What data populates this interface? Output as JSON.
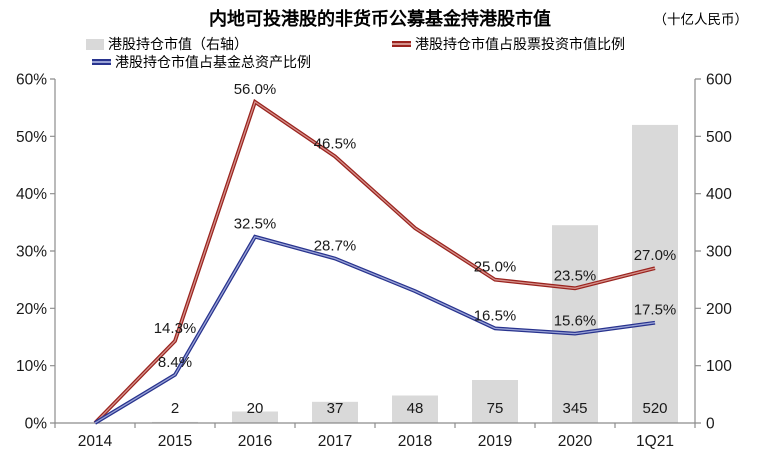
{
  "header": {
    "title": "内地可投港股的非货币公募基金持港股市值",
    "unit": "（十亿人民币）"
  },
  "legend": [
    {
      "label": "港股持仓市值（右轴）",
      "swatch": "gray-bar-swatch",
      "color": "#D9D9D9"
    },
    {
      "label": "港股持仓市值占股票投资市值比例",
      "swatch": "red-line-swatch",
      "color": "#9A231E"
    },
    {
      "label": "港股持仓市值占基金总资产比例",
      "swatch": "blue-line-swatch",
      "color": "#28338E"
    }
  ],
  "chart_data": {
    "type": "combo-bar-line",
    "title": "内地可投港股的非货币公募基金持港股市值",
    "right_axis_unit": "（十亿人民币）",
    "categories": [
      "2014",
      "2015",
      "2016",
      "2017",
      "2018",
      "2019",
      "2020",
      "1Q21"
    ],
    "series": [
      {
        "name": "港股持仓市值（右轴）",
        "type": "bar",
        "axis": "right",
        "values": [
          0,
          2,
          20,
          37,
          48,
          75,
          345,
          520
        ],
        "labels": [
          "",
          "2",
          "20",
          "37",
          "48",
          "75",
          "345",
          "520"
        ],
        "color": "#D9D9D9"
      },
      {
        "name": "港股持仓市值占股票投资市值比例",
        "type": "line",
        "axis": "left",
        "values": [
          0,
          14.3,
          56.0,
          46.5,
          34,
          25.0,
          23.5,
          27.0
        ],
        "labels": [
          "",
          "14.3%",
          "56.0%",
          "46.5%",
          "",
          "25.0%",
          "23.5%",
          "27.0%"
        ],
        "color": "#9A231E",
        "color_inner": "#D4918B"
      },
      {
        "name": "港股持仓市值占基金总资产比例",
        "type": "line",
        "axis": "left",
        "values": [
          0,
          8.4,
          32.5,
          28.7,
          23,
          16.5,
          15.6,
          17.5
        ],
        "labels": [
          "",
          "8.4%",
          "32.5%",
          "28.7%",
          "",
          "16.5%",
          "15.6%",
          "17.5%"
        ],
        "color": "#28338E",
        "color_inner": "#9AA3D6"
      }
    ],
    "left_axis": {
      "tick_labels": [
        "0%",
        "10%",
        "20%",
        "30%",
        "40%",
        "50%",
        "60%"
      ],
      "min": 0,
      "max": 60
    },
    "right_axis": {
      "tick_labels": [
        "0",
        "100",
        "200",
        "300",
        "400",
        "500",
        "600"
      ],
      "min": 0,
      "max": 600
    },
    "grid": false,
    "legend_position": "top",
    "axis_color": "#8C8C8C"
  }
}
